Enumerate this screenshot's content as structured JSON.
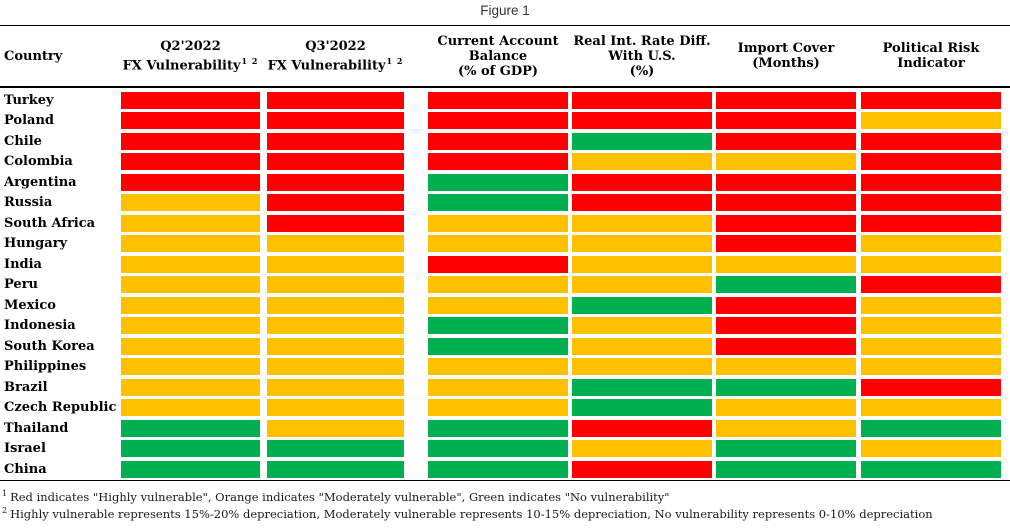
{
  "title": "Figure 1",
  "colors": {
    "red": "#FF0000",
    "orange": "#FFC000",
    "green": "#00B050"
  },
  "header": {
    "country": "Country",
    "q2": {
      "line1": "Q2'2022",
      "line2": "FX Vulnerability",
      "sup": "1 2"
    },
    "q3": {
      "line1": "Q3'2022",
      "line2": "FX Vulnerability",
      "sup": "1 2"
    },
    "ca": {
      "line1": "Current Account",
      "line2": "Balance",
      "line3": "(% of GDP)"
    },
    "rir": {
      "line1": "Real Int. Rate Diff.",
      "line2": "With U.S.",
      "line3": "(%)"
    },
    "ic": {
      "line1": "Import Cover",
      "line2": "(Months)"
    },
    "pr": {
      "line1": "Political Risk",
      "line2": "Indicator"
    }
  },
  "footnotes": [
    {
      "sup": "1",
      "text": "Red indicates \"Highly vulnerable\", Orange indicates \"Moderately vulnerable\", Green indicates \"No vulnerability\""
    },
    {
      "sup": "2",
      "text": "Highly vulnerable represents 15%-20% depreciation, Moderately vulnerable represents 10-15% depreciation, No vulnerability represents 0-10% depreciation"
    }
  ],
  "chart_data": {
    "type": "heatmap",
    "title": "Figure 1",
    "columns": [
      "Q2'2022 FX Vulnerability",
      "Q3'2022 FX Vulnerability",
      "Current Account Balance (% of GDP)",
      "Real Int. Rate Diff. With U.S. (%)",
      "Import Cover (Months)",
      "Political Risk Indicator"
    ],
    "categories": [
      "Turkey",
      "Poland",
      "Chile",
      "Colombia",
      "Argentina",
      "Russia",
      "South Africa",
      "Hungary",
      "India",
      "Peru",
      "Mexico",
      "Indonesia",
      "South Korea",
      "Philippines",
      "Brazil",
      "Czech Republic",
      "Thailand",
      "Israel",
      "China"
    ],
    "values": [
      [
        "red",
        "red",
        "red",
        "red",
        "red",
        "red"
      ],
      [
        "red",
        "red",
        "red",
        "red",
        "red",
        "orange"
      ],
      [
        "red",
        "red",
        "red",
        "green",
        "red",
        "red"
      ],
      [
        "red",
        "red",
        "red",
        "orange",
        "orange",
        "red"
      ],
      [
        "red",
        "red",
        "green",
        "red",
        "red",
        "red"
      ],
      [
        "orange",
        "red",
        "green",
        "red",
        "red",
        "red"
      ],
      [
        "orange",
        "red",
        "orange",
        "orange",
        "red",
        "red"
      ],
      [
        "orange",
        "orange",
        "orange",
        "orange",
        "red",
        "orange"
      ],
      [
        "orange",
        "orange",
        "red",
        "orange",
        "orange",
        "orange"
      ],
      [
        "orange",
        "orange",
        "orange",
        "orange",
        "green",
        "red"
      ],
      [
        "orange",
        "orange",
        "orange",
        "green",
        "red",
        "orange"
      ],
      [
        "orange",
        "orange",
        "green",
        "orange",
        "red",
        "orange"
      ],
      [
        "orange",
        "orange",
        "green",
        "orange",
        "red",
        "orange"
      ],
      [
        "orange",
        "orange",
        "orange",
        "orange",
        "orange",
        "orange"
      ],
      [
        "orange",
        "orange",
        "orange",
        "green",
        "green",
        "red"
      ],
      [
        "orange",
        "orange",
        "orange",
        "green",
        "orange",
        "orange"
      ],
      [
        "green",
        "orange",
        "green",
        "red",
        "orange",
        "green"
      ],
      [
        "green",
        "green",
        "green",
        "orange",
        "green",
        "orange"
      ],
      [
        "green",
        "green",
        "green",
        "red",
        "green",
        "green"
      ]
    ],
    "legend": {
      "red": "Highly vulnerable",
      "orange": "Moderately vulnerable",
      "green": "No vulnerability"
    }
  }
}
